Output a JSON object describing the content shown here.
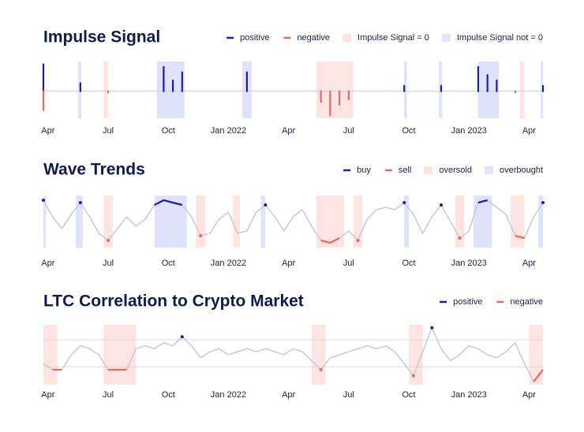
{
  "chart_data": [
    {
      "type": "line",
      "title": "Impulse Signal",
      "legend": "top-right",
      "x": [
        0,
        2,
        4,
        6,
        8,
        10,
        12,
        14,
        16,
        18,
        20,
        22,
        24,
        26,
        28,
        30,
        32,
        34,
        36,
        38,
        40,
        42,
        44,
        46,
        48,
        50,
        52,
        54,
        56,
        58,
        60,
        62,
        64,
        66,
        68,
        70,
        72,
        74,
        76,
        78,
        80,
        82,
        84,
        86,
        88,
        90,
        92,
        94,
        96,
        98,
        100,
        102,
        104,
        106,
        108
      ],
      "xlim": [
        0,
        108
      ],
      "xticks": [
        {
          "value": 1,
          "label": "Apr"
        },
        {
          "value": 14,
          "label": "Jul"
        },
        {
          "value": 27,
          "label": "Oct"
        },
        {
          "value": 40,
          "label": "Jan 2022"
        },
        {
          "value": 53,
          "label": "Apr"
        },
        {
          "value": 66,
          "label": "Jul"
        },
        {
          "value": 79,
          "label": "Oct"
        },
        {
          "value": 92,
          "label": "Jan 2023"
        },
        {
          "value": 105,
          "label": "Apr"
        }
      ],
      "ylim": [
        -1,
        1.1
      ],
      "reference_lines": [
        0
      ],
      "reference_color": "#c8ccd6",
      "series": [
        {
          "name": "positive",
          "color": "#1c1ca6",
          "mark": "stem",
          "values": [
            1.0,
            null,
            null,
            null,
            0.3,
            null,
            null,
            null,
            null,
            null,
            null,
            null,
            null,
            0.9,
            0.4,
            0.7,
            null,
            null,
            null,
            null,
            null,
            null,
            0.7,
            null,
            null,
            null,
            null,
            null,
            null,
            null,
            null,
            null,
            null,
            null,
            null,
            null,
            null,
            null,
            null,
            0.2,
            null,
            null,
            null,
            0.2,
            null,
            null,
            null,
            0.9,
            0.6,
            0.4,
            null,
            null,
            null,
            null,
            0.2
          ]
        },
        {
          "name": "negative",
          "color": "#e8675f",
          "mark": "stem",
          "values": [
            -0.7,
            null,
            null,
            null,
            null,
            null,
            null,
            -0.05,
            null,
            null,
            null,
            null,
            null,
            null,
            null,
            null,
            null,
            null,
            null,
            null,
            null,
            null,
            null,
            null,
            null,
            null,
            null,
            null,
            null,
            null,
            -0.4,
            -0.9,
            -0.5,
            -0.3,
            null,
            null,
            null,
            null,
            null,
            null,
            null,
            null,
            null,
            null,
            null,
            null,
            null,
            null,
            null,
            null,
            null,
            -0.05,
            null,
            null,
            null
          ]
        }
      ],
      "spans": [
        {
          "name": "Impulse Signal = 0",
          "color": "#fde3e1",
          "ranges": [
            [
              13,
              14
            ],
            [
              59,
              67
            ],
            [
              103,
              104
            ]
          ]
        },
        {
          "name": "Impulse Signal not = 0",
          "color": "#dfe2fa",
          "ranges": [
            [
              7.5,
              8.2
            ],
            [
              24.5,
              30.5
            ],
            [
              43,
              45
            ],
            [
              78,
              78.6
            ],
            [
              85.5,
              86.2
            ],
            [
              94,
              98.5
            ],
            [
              107.5,
              108
            ]
          ]
        }
      ]
    },
    {
      "type": "line",
      "title": "Wave Trends",
      "legend": "top-right",
      "x": [
        0,
        2,
        4,
        6,
        8,
        10,
        12,
        14,
        16,
        18,
        20,
        22,
        24,
        26,
        28,
        30,
        32,
        34,
        36,
        38,
        40,
        42,
        44,
        46,
        48,
        50,
        52,
        54,
        56,
        58,
        60,
        62,
        64,
        66,
        68,
        70,
        72,
        74,
        76,
        78,
        80,
        82,
        84,
        86,
        88,
        90,
        92,
        94,
        96,
        98,
        100,
        102,
        104,
        106,
        108
      ],
      "xlim": [
        0,
        108
      ],
      "xticks": [
        {
          "value": 1,
          "label": "Apr"
        },
        {
          "value": 14,
          "label": "Jul"
        },
        {
          "value": 27,
          "label": "Oct"
        },
        {
          "value": 40,
          "label": "Jan 2022"
        },
        {
          "value": 53,
          "label": "Apr"
        },
        {
          "value": 66,
          "label": "Jul"
        },
        {
          "value": 79,
          "label": "Oct"
        },
        {
          "value": 92,
          "label": "Jan 2023"
        },
        {
          "value": 105,
          "label": "Apr"
        }
      ],
      "ylim": [
        -1.1,
        1.1
      ],
      "series": [
        {
          "color": "#c8ccd6",
          "mark": "line",
          "values": [
            0.9,
            0.2,
            -0.3,
            0.3,
            0.8,
            0.2,
            -0.5,
            -0.8,
            -0.3,
            0.2,
            -0.2,
            0.1,
            0.7,
            0.9,
            0.8,
            0.7,
            0.2,
            -0.6,
            -0.5,
            0.1,
            0.4,
            -0.5,
            -0.4,
            0.4,
            0.7,
            0.2,
            -0.4,
            0.2,
            0.5,
            -0.2,
            -0.8,
            -0.9,
            -0.7,
            -0.4,
            -0.8,
            0.1,
            0.5,
            0.6,
            0.5,
            0.8,
            0.3,
            -0.5,
            0.2,
            0.7,
            0.0,
            -0.7,
            -0.4,
            0.8,
            0.9,
            0.6,
            0.3,
            -0.6,
            -0.7,
            0.2,
            0.8
          ]
        },
        {
          "name": "buy",
          "color": "#1c1ca6",
          "mark": "line",
          "values": [
            0.9,
            null,
            null,
            null,
            0.8,
            null,
            null,
            null,
            null,
            null,
            null,
            null,
            0.7,
            0.9,
            0.8,
            0.7,
            null,
            null,
            null,
            null,
            null,
            null,
            null,
            null,
            0.7,
            null,
            null,
            null,
            null,
            null,
            null,
            null,
            null,
            null,
            null,
            null,
            null,
            null,
            null,
            0.8,
            null,
            null,
            null,
            0.7,
            null,
            null,
            null,
            0.8,
            0.9,
            null,
            null,
            null,
            null,
            null,
            0.8
          ]
        },
        {
          "name": "sell",
          "color": "#e8675f",
          "mark": "line",
          "values": [
            null,
            null,
            null,
            null,
            null,
            null,
            null,
            -0.8,
            null,
            null,
            null,
            null,
            null,
            null,
            null,
            null,
            null,
            -0.6,
            null,
            null,
            null,
            null,
            null,
            null,
            null,
            null,
            null,
            null,
            null,
            null,
            -0.8,
            -0.9,
            -0.7,
            null,
            -0.8,
            null,
            null,
            null,
            null,
            null,
            null,
            null,
            null,
            null,
            null,
            -0.7,
            null,
            null,
            null,
            null,
            null,
            -0.6,
            -0.7,
            null,
            null
          ]
        }
      ],
      "spans": [
        {
          "name": "oversold",
          "color": "#fde3e1",
          "ranges": [
            [
              13,
              15
            ],
            [
              33,
              35
            ],
            [
              41,
              42.5
            ],
            [
              59,
              65
            ],
            [
              67,
              69
            ],
            [
              89,
              91
            ],
            [
              101,
              104
            ]
          ]
        },
        {
          "name": "overbought",
          "color": "#dfe2fa",
          "ranges": [
            [
              0,
              0.6
            ],
            [
              7,
              8.5
            ],
            [
              24,
              31
            ],
            [
              47,
              48
            ],
            [
              78,
              79
            ],
            [
              93,
              97
            ],
            [
              107,
              108
            ]
          ]
        }
      ]
    },
    {
      "type": "line",
      "title": "LTC Correlation to Crypto Market",
      "legend": "top-right",
      "x": [
        0,
        2,
        4,
        6,
        8,
        10,
        12,
        14,
        16,
        18,
        20,
        22,
        24,
        26,
        28,
        30,
        32,
        34,
        36,
        38,
        40,
        42,
        44,
        46,
        48,
        50,
        52,
        54,
        56,
        58,
        60,
        62,
        64,
        66,
        68,
        70,
        72,
        74,
        76,
        78,
        80,
        82,
        84,
        86,
        88,
        90,
        92,
        94,
        96,
        98,
        100,
        102,
        104,
        106,
        108
      ],
      "xlim": [
        0,
        108
      ],
      "xticks": [
        {
          "value": 1,
          "label": "Apr"
        },
        {
          "value": 14,
          "label": "Jul"
        },
        {
          "value": 27,
          "label": "Oct"
        },
        {
          "value": 40,
          "label": "Jan 2022"
        },
        {
          "value": 53,
          "label": "Apr"
        },
        {
          "value": 66,
          "label": "Jul"
        },
        {
          "value": 79,
          "label": "Oct"
        },
        {
          "value": 92,
          "label": "Jan 2023"
        },
        {
          "value": 105,
          "label": "Apr"
        }
      ],
      "ylim": [
        -1,
        1
      ],
      "reference_lines": [
        0.5,
        -0.4
      ],
      "reference_color": "#d6d8de",
      "series": [
        {
          "color": "#c8ccd6",
          "mark": "line",
          "values": [
            -0.3,
            -0.5,
            -0.5,
            0.0,
            0.3,
            0.2,
            0.0,
            -0.5,
            -0.5,
            -0.5,
            0.2,
            0.3,
            0.2,
            0.4,
            0.3,
            0.6,
            0.3,
            -0.1,
            0.1,
            0.2,
            0.0,
            0.1,
            0.2,
            0.1,
            0.2,
            0.1,
            0.0,
            0.2,
            0.1,
            -0.2,
            -0.5,
            -0.1,
            0.0,
            0.1,
            0.2,
            0.3,
            0.2,
            0.3,
            0.1,
            -0.3,
            -0.7,
            0.1,
            0.9,
            0.2,
            -0.2,
            0.0,
            0.3,
            0.2,
            0.0,
            -0.1,
            0.1,
            0.4,
            -0.3,
            -0.9,
            -0.5
          ]
        },
        {
          "name": "positive",
          "color": "#1c1ca6",
          "mark": "line",
          "values": [
            null,
            null,
            null,
            null,
            null,
            null,
            null,
            null,
            null,
            null,
            null,
            null,
            null,
            null,
            null,
            0.6,
            null,
            null,
            null,
            null,
            null,
            null,
            null,
            null,
            null,
            null,
            null,
            null,
            null,
            null,
            null,
            null,
            null,
            null,
            null,
            null,
            null,
            null,
            null,
            null,
            null,
            null,
            0.9,
            null,
            null,
            null,
            null,
            null,
            null,
            null,
            null,
            null,
            null,
            null,
            null
          ]
        },
        {
          "name": "negative",
          "color": "#e8675f",
          "mark": "line",
          "values": [
            null,
            -0.5,
            -0.5,
            null,
            null,
            null,
            null,
            -0.5,
            -0.5,
            -0.5,
            null,
            null,
            null,
            null,
            null,
            null,
            null,
            null,
            null,
            null,
            null,
            null,
            null,
            null,
            null,
            null,
            null,
            null,
            null,
            null,
            -0.5,
            null,
            null,
            null,
            null,
            null,
            null,
            null,
            null,
            null,
            -0.7,
            null,
            null,
            null,
            null,
            null,
            null,
            null,
            null,
            null,
            null,
            null,
            null,
            -0.9,
            -0.5
          ]
        }
      ],
      "spans": [
        {
          "color": "#fde3e1",
          "ranges": [
            [
              0,
              3
            ],
            [
              13,
              20
            ],
            [
              58,
              61
            ],
            [
              79,
              82
            ],
            [
              105,
              108
            ]
          ]
        }
      ]
    }
  ]
}
